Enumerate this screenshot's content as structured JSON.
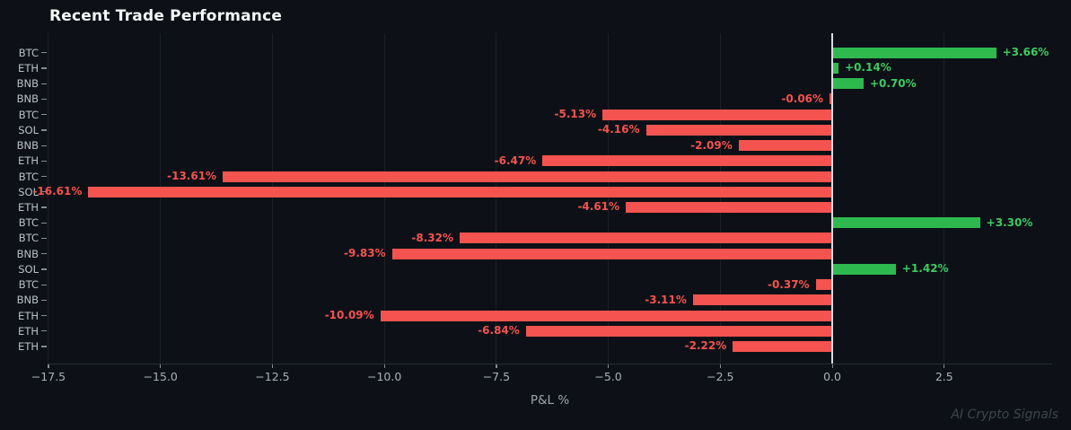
{
  "title": "Recent Trade Performance",
  "watermark": "AI Crypto Signals",
  "colors": {
    "background": "#0d1117",
    "positive_bar": "#2eb94e",
    "positive_text": "#3ecb60",
    "negative_bar": "#f4534f",
    "negative_text": "#f4534f",
    "zero_line": "#d8dbdf",
    "gridline": "#1a2029",
    "axis_spine": "#262c37",
    "tick_label": "#a9b0ba",
    "category_label": "#b9c0c8",
    "title_text": "#f4f6f8",
    "watermark_text": "#3d4450"
  },
  "chart_data": {
    "type": "bar",
    "orientation": "horizontal",
    "title": "Recent Trade Performance",
    "xlabel": "P&L %",
    "categories": [
      "BTC",
      "ETH",
      "BNB",
      "BNB",
      "BTC",
      "SOL",
      "BNB",
      "ETH",
      "BTC",
      "SOL",
      "ETH",
      "BTC",
      "BTC",
      "BNB",
      "SOL",
      "BTC",
      "BNB",
      "ETH",
      "ETH",
      "ETH"
    ],
    "values": [
      3.66,
      0.14,
      0.7,
      -0.06,
      -5.13,
      -4.16,
      -2.09,
      -6.47,
      -13.61,
      -16.61,
      -4.61,
      3.3,
      -8.32,
      -9.83,
      1.42,
      -0.37,
      -3.11,
      -10.09,
      -6.84,
      -2.22
    ],
    "value_labels": [
      "+3.66%",
      "+0.14%",
      "+0.70%",
      "-0.06%",
      "-5.13%",
      "-4.16%",
      "-2.09%",
      "-6.47%",
      "-13.61%",
      "-16.61%",
      "-4.61%",
      "+3.30%",
      "-8.32%",
      "-9.83%",
      "+1.42%",
      "-0.37%",
      "-3.11%",
      "-10.09%",
      "-6.84%",
      "-2.22%"
    ],
    "xlim": [
      -17.52,
      4.91
    ],
    "xticks": [
      -17.5,
      -15.0,
      -12.5,
      -10.0,
      -7.5,
      -5.0,
      -2.5,
      0.0,
      2.5
    ],
    "xtick_labels": [
      "−17.5",
      "−15.0",
      "−12.5",
      "−10.0",
      "−7.5",
      "−5.0",
      "−2.5",
      "0.0",
      "2.5"
    ],
    "grid": true,
    "legend": false,
    "legend_position": "none"
  }
}
